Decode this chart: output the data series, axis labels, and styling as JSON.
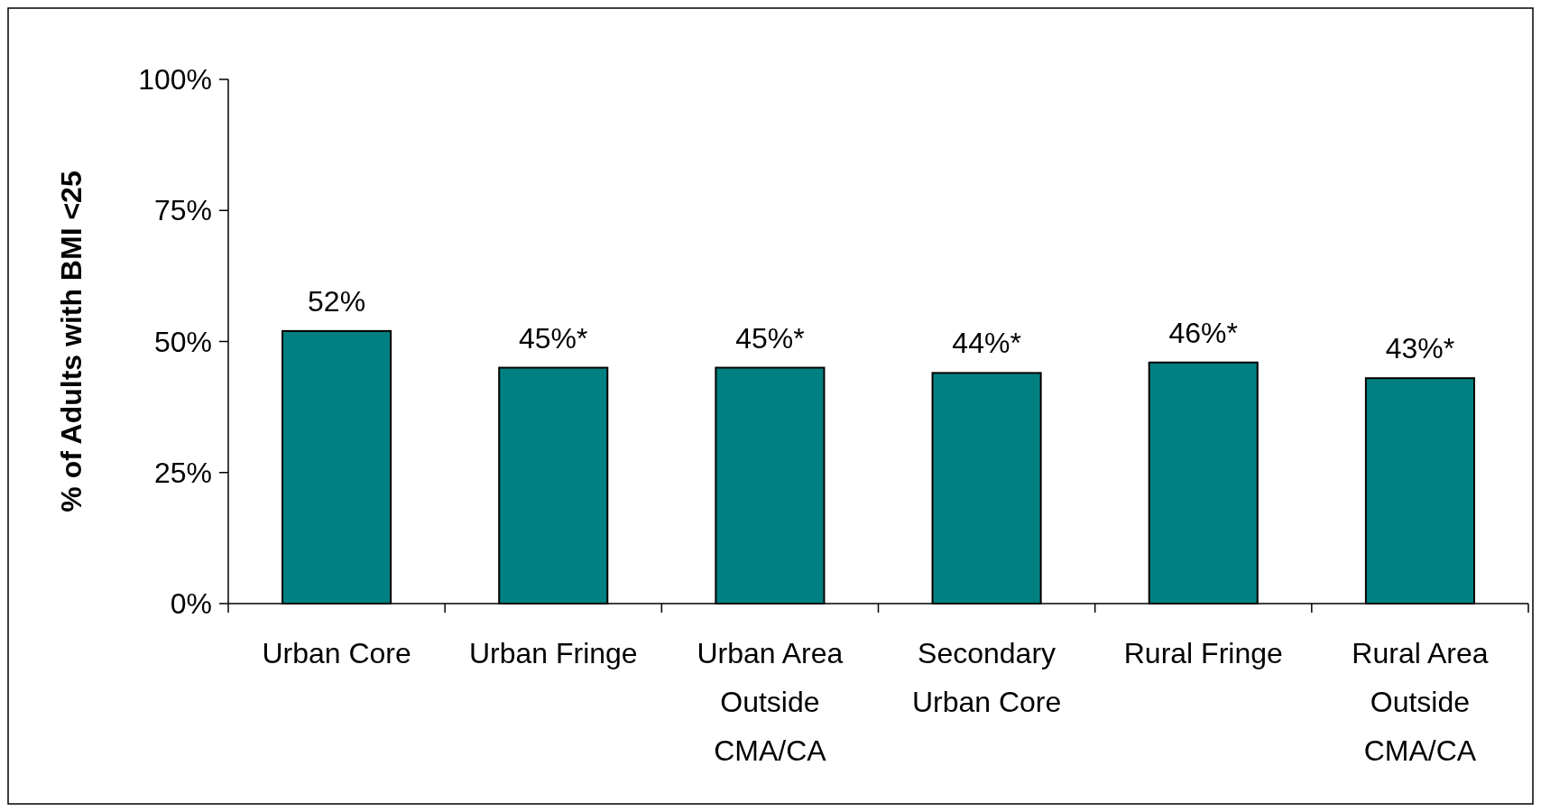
{
  "chart_data": {
    "type": "bar",
    "ylabel": "% of Adults with BMI <25",
    "categories": [
      "Urban Core",
      "Urban Fringe",
      "Urban Area Outside CMA/CA",
      "Secondary Urban Core",
      "Rural Fringe",
      "Rural Area Outside CMA/CA"
    ],
    "values": [
      52,
      45,
      45,
      44,
      46,
      43
    ],
    "value_labels": [
      "52%",
      "45%*",
      "45%*",
      "44%*",
      "46%*",
      "43%*"
    ],
    "color": "#008080",
    "ylim": [
      0,
      100
    ],
    "yticks": [
      {
        "value": 0,
        "label": "0%"
      },
      {
        "value": 25,
        "label": "25%"
      },
      {
        "value": 50,
        "label": "50%"
      },
      {
        "value": 75,
        "label": "75%"
      },
      {
        "value": 100,
        "label": "100%"
      }
    ],
    "grid": false
  }
}
